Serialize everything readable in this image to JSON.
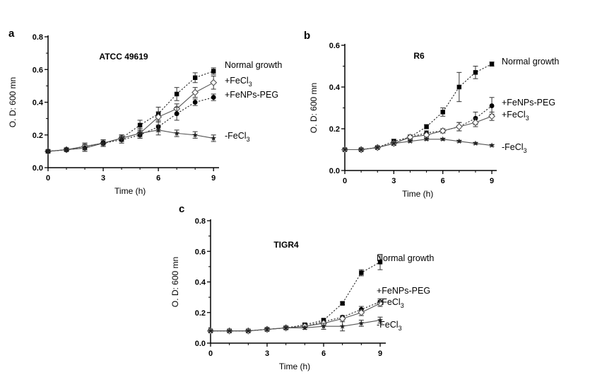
{
  "chart_data": [
    {
      "type": "line",
      "panel": "a",
      "title": "ATCC 49619",
      "xlabel": "Time (h)",
      "ylabel": "O. D: 600 mn",
      "xlim": [
        0,
        9.3
      ],
      "ylim": [
        0,
        0.8
      ],
      "xticks": [
        0,
        3,
        6,
        9
      ],
      "yticks": [
        0.0,
        0.2,
        0.4,
        0.6,
        0.8
      ],
      "x": [
        0,
        1,
        2,
        3,
        4,
        5,
        6,
        7,
        8,
        9
      ],
      "series": [
        {
          "name": "Normal growth",
          "label": "Normal growth",
          "marker": "square",
          "line": "dotted",
          "values": [
            0.1,
            0.11,
            0.13,
            0.15,
            0.18,
            0.26,
            0.33,
            0.45,
            0.55,
            0.59
          ],
          "errors": [
            0.01,
            0.01,
            0.02,
            0.02,
            0.02,
            0.03,
            0.04,
            0.04,
            0.03,
            0.02
          ]
        },
        {
          "name": "+FeCl3",
          "label": "+FeCl",
          "sub": "3",
          "marker": "diamond-open",
          "line": "solid",
          "values": [
            0.1,
            0.11,
            0.13,
            0.15,
            0.18,
            0.21,
            0.31,
            0.36,
            0.46,
            0.52
          ],
          "errors": [
            0.01,
            0.01,
            0.02,
            0.02,
            0.02,
            0.02,
            0.03,
            0.03,
            0.03,
            0.04
          ]
        },
        {
          "name": "+FeNPs-PEG",
          "label": "+FeNPs-PEG",
          "marker": "circle",
          "line": "dotted",
          "values": [
            0.1,
            0.11,
            0.12,
            0.15,
            0.17,
            0.2,
            0.25,
            0.33,
            0.4,
            0.43
          ],
          "errors": [
            0.01,
            0.01,
            0.02,
            0.02,
            0.02,
            0.02,
            0.03,
            0.04,
            0.02,
            0.02
          ]
        },
        {
          "name": "-FeCl3",
          "label": "-FeCl",
          "sub": "3",
          "marker": "star",
          "line": "solid",
          "values": [
            0.1,
            0.11,
            0.12,
            0.15,
            0.18,
            0.21,
            0.23,
            0.21,
            0.2,
            0.18
          ],
          "errors": [
            0.01,
            0.01,
            0.02,
            0.02,
            0.02,
            0.03,
            0.03,
            0.02,
            0.02,
            0.02
          ]
        }
      ]
    },
    {
      "type": "line",
      "panel": "b",
      "title": "R6",
      "xlabel": "Time (h)",
      "ylabel": "O. D: 600 mn",
      "xlim": [
        0,
        9.3
      ],
      "ylim": [
        0,
        0.6
      ],
      "xticks": [
        0,
        3,
        6,
        9
      ],
      "yticks": [
        0.0,
        0.2,
        0.4,
        0.6
      ],
      "x": [
        0,
        1,
        2,
        3,
        4,
        5,
        6,
        7,
        8,
        9
      ],
      "series": [
        {
          "name": "Normal growth",
          "label": "Normal growth",
          "marker": "square",
          "line": "dotted",
          "values": [
            0.1,
            0.1,
            0.11,
            0.14,
            0.16,
            0.21,
            0.28,
            0.4,
            0.47,
            0.51
          ],
          "errors": [
            0.005,
            0.005,
            0.005,
            0.01,
            0.01,
            0.01,
            0.02,
            0.07,
            0.03,
            0.01
          ]
        },
        {
          "name": "+FeNPs-PEG",
          "label": "+FeNPs-PEG",
          "marker": "circle",
          "line": "dotted",
          "values": [
            0.1,
            0.1,
            0.11,
            0.13,
            0.16,
            0.18,
            0.19,
            0.21,
            0.25,
            0.31
          ],
          "errors": [
            0.005,
            0.005,
            0.005,
            0.01,
            0.01,
            0.01,
            0.01,
            0.02,
            0.03,
            0.04
          ]
        },
        {
          "name": "+FeCl3",
          "label": "+FeCl",
          "sub": "3",
          "marker": "diamond-open",
          "line": "solid",
          "values": [
            0.1,
            0.1,
            0.11,
            0.13,
            0.16,
            0.17,
            0.19,
            0.21,
            0.23,
            0.26
          ],
          "errors": [
            0.005,
            0.005,
            0.005,
            0.01,
            0.01,
            0.01,
            0.01,
            0.02,
            0.02,
            0.02
          ]
        },
        {
          "name": "-FeCl3",
          "label": "-FeCl",
          "sub": "3",
          "marker": "star",
          "line": "solid",
          "values": [
            0.1,
            0.1,
            0.11,
            0.13,
            0.14,
            0.15,
            0.15,
            0.14,
            0.13,
            0.12
          ],
          "errors": [
            0.005,
            0.005,
            0.005,
            0.005,
            0.005,
            0.005,
            0.005,
            0.005,
            0.005,
            0.005
          ]
        }
      ]
    },
    {
      "type": "line",
      "panel": "c",
      "title": "TIGR4",
      "xlabel": "Time (h)",
      "ylabel": "O. D: 600 mn",
      "xlim": [
        0,
        9.3
      ],
      "ylim": [
        0,
        0.8
      ],
      "xticks": [
        0,
        3,
        6,
        9
      ],
      "yticks": [
        0.0,
        0.2,
        0.4,
        0.6,
        0.8
      ],
      "x": [
        0,
        1,
        2,
        3,
        4,
        5,
        6,
        7,
        8,
        9
      ],
      "series": [
        {
          "name": "Normal growth",
          "label": "Normal growth",
          "marker": "square",
          "line": "dotted",
          "values": [
            0.08,
            0.08,
            0.08,
            0.09,
            0.1,
            0.12,
            0.15,
            0.26,
            0.46,
            0.53
          ],
          "errors": [
            0.005,
            0.005,
            0.005,
            0.01,
            0.01,
            0.01,
            0.01,
            0.01,
            0.02,
            0.05
          ]
        },
        {
          "name": "+FeNPs-PEG",
          "label": "+FeNPs-PEG",
          "marker": "circle",
          "line": "dotted",
          "values": [
            0.08,
            0.08,
            0.08,
            0.09,
            0.1,
            0.11,
            0.14,
            0.17,
            0.22,
            0.27
          ],
          "errors": [
            0.005,
            0.005,
            0.005,
            0.01,
            0.01,
            0.01,
            0.01,
            0.01,
            0.02,
            0.02
          ]
        },
        {
          "name": "+FeCl3",
          "label": "+FeCl",
          "sub": "3",
          "marker": "diamond-open",
          "line": "solid",
          "values": [
            0.08,
            0.08,
            0.08,
            0.09,
            0.1,
            0.11,
            0.13,
            0.16,
            0.2,
            0.26
          ],
          "errors": [
            0.005,
            0.005,
            0.005,
            0.01,
            0.01,
            0.01,
            0.01,
            0.01,
            0.02,
            0.02
          ]
        },
        {
          "name": "-FeCl3",
          "label": "-FeCl",
          "sub": "3",
          "marker": "star",
          "line": "solid",
          "values": [
            0.08,
            0.08,
            0.08,
            0.09,
            0.1,
            0.1,
            0.11,
            0.11,
            0.13,
            0.15
          ],
          "errors": [
            0.005,
            0.005,
            0.005,
            0.01,
            0.01,
            0.01,
            0.02,
            0.03,
            0.02,
            0.02
          ]
        }
      ]
    }
  ]
}
